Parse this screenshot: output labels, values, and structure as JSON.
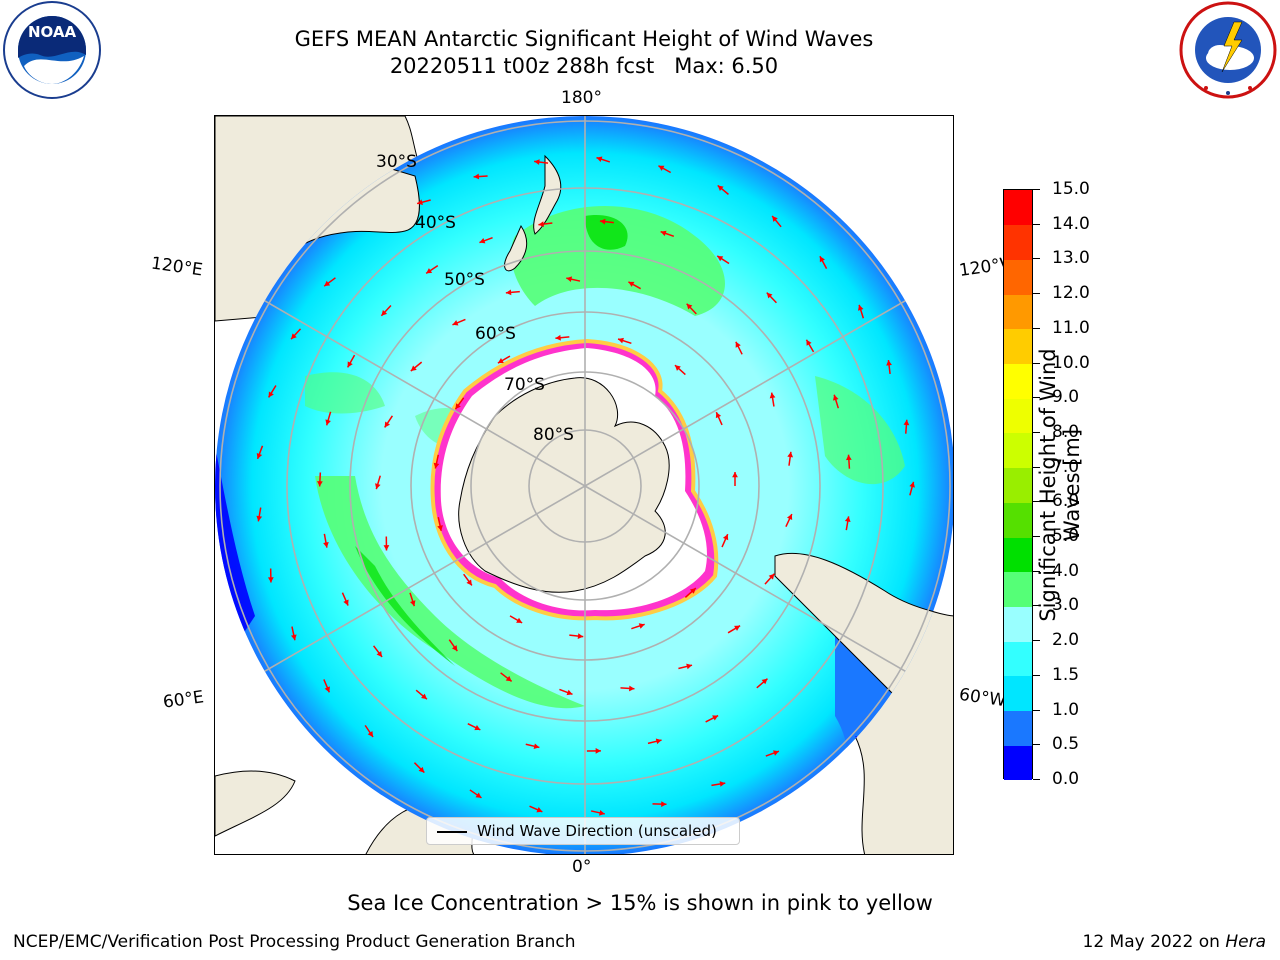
{
  "header": {
    "title_line1": "GEFS MEAN Antarctic Significant Height of Wind Waves",
    "title_line2": "20220511 t00z 288h fcst   Max: 6.50"
  },
  "logos": {
    "left": "NOAA",
    "left_ring_text": "NATIONAL OCEANIC AND ATMOSPHERIC ADMINISTRATION · U.S. DEPARTMENT OF COMMERCE",
    "right_ring_text": "NATIONAL WEATHER SERVICE"
  },
  "map": {
    "projection": "south-polar-stereographic",
    "longitude_labels": {
      "top": "180°",
      "bottom": "0°",
      "upper_left": "120°E",
      "lower_left": "60°E",
      "upper_right": "120°W",
      "lower_right": "60°W"
    },
    "latitude_labels": [
      "30°S",
      "40°S",
      "50°S",
      "60°S",
      "70°S",
      "80°S"
    ],
    "legend": "Wind Wave Direction (unscaled)",
    "colors": {
      "land": "#efebdc",
      "sea_ice_pink": "#ff33cc",
      "sea_ice_yellow": "#ffcc44",
      "arrow": "#ff0000",
      "grid": "#b0b0b0"
    }
  },
  "colorbar": {
    "title": "Significant Height of Wind Waves [m]",
    "ticks": [
      "0.0",
      "0.5",
      "1.0",
      "1.5",
      "2.0",
      "3.0",
      "4.0",
      "5.0",
      "6.0",
      "7.0",
      "8.0",
      "9.0",
      "10.0",
      "11.0",
      "12.0",
      "13.0",
      "14.0",
      "15.0"
    ],
    "colors": [
      "#0000ff",
      "#1a78ff",
      "#00e6ff",
      "#33ffff",
      "#99ffff",
      "#55ff77",
      "#00e000",
      "#55e000",
      "#99ee00",
      "#ccff00",
      "#eeff00",
      "#ffff00",
      "#ffcc00",
      "#ff9900",
      "#ff6600",
      "#ff3300",
      "#ff0000"
    ]
  },
  "footer": {
    "subtitle": "Sea Ice Concentration > 15% is shown in pink to yellow",
    "credit": "NCEP/EMC/Verification Post Processing Product Generation Branch",
    "date": "12 May 2022 on",
    "machine": "Hera"
  }
}
